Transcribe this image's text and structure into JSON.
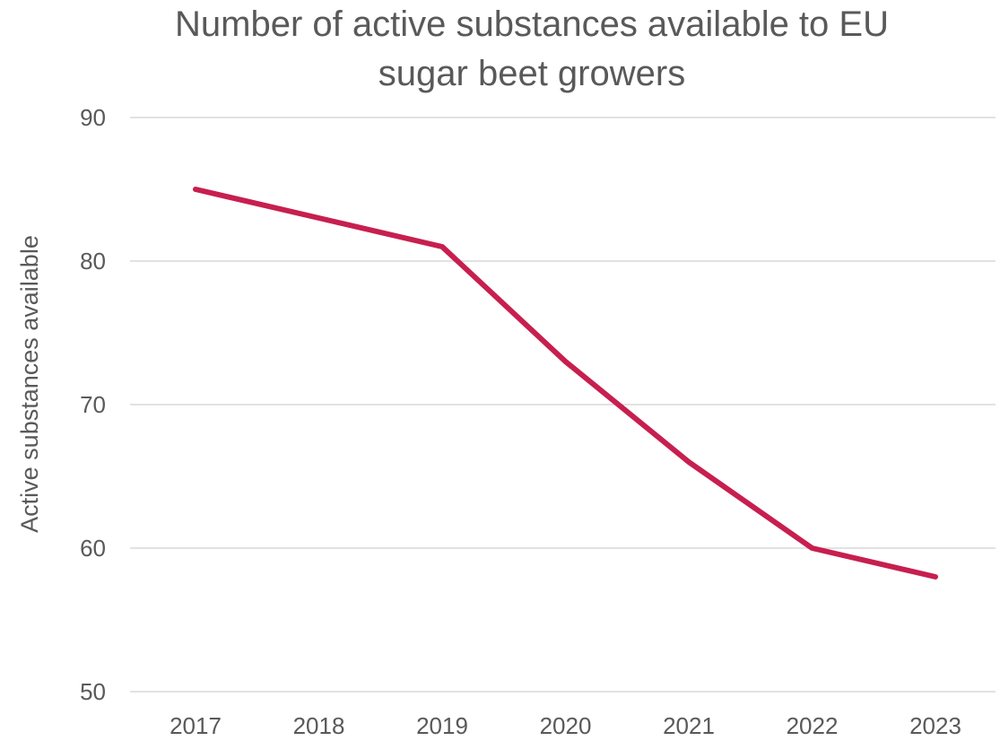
{
  "chart_data": {
    "type": "line",
    "title_lines": [
      "Number of active substances available to EU",
      "sugar beet growers"
    ],
    "ylabel": "Active substances available",
    "xlabel": "",
    "categories": [
      "2017",
      "2018",
      "2019",
      "2020",
      "2021",
      "2022",
      "2023"
    ],
    "series": [
      {
        "values": [
          85,
          83,
          81,
          73,
          66,
          60,
          58
        ],
        "color": "#c71f4f"
      }
    ],
    "ylim": [
      50,
      90
    ],
    "yticks": [
      "50",
      "60",
      "70",
      "80",
      "90"
    ],
    "grid": true,
    "legend": "none"
  }
}
